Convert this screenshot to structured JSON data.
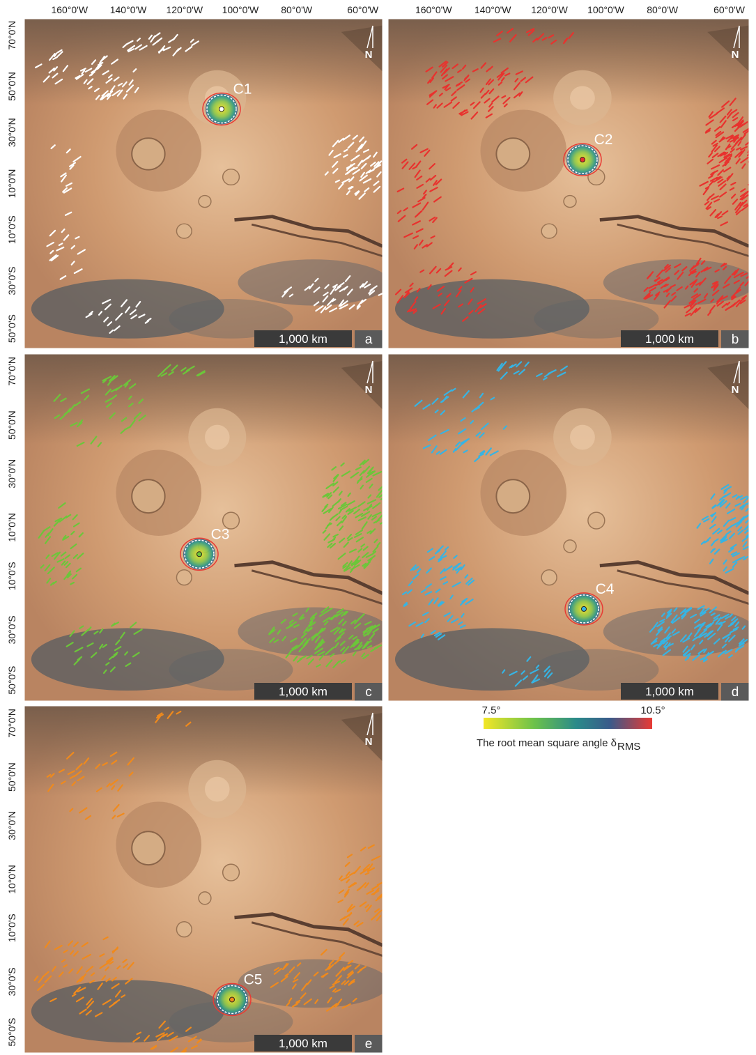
{
  "longitude_labels": [
    "160°0'W",
    "140°0'W",
    "120°0'W",
    "100°0'W",
    "80°0'W",
    "60°0'W"
  ],
  "latitude_labels": [
    "70°0'N",
    "50°0'N",
    "30°0'N",
    "10°0'N",
    "10°0'S",
    "30°0'S",
    "50°0'S"
  ],
  "scale_bar": "1,000 km",
  "north_label": "N",
  "panels": [
    {
      "letter": "a",
      "center_label": "C1",
      "lineament_color": "#ffffff"
    },
    {
      "letter": "b",
      "center_label": "C2",
      "lineament_color": "#e8322e"
    },
    {
      "letter": "c",
      "center_label": "C3",
      "lineament_color": "#6cc63a"
    },
    {
      "letter": "d",
      "center_label": "C4",
      "lineament_color": "#36b4e4"
    },
    {
      "letter": "e",
      "center_label": "C5",
      "lineament_color": "#f08a1c"
    }
  ],
  "colorbar": {
    "min_label": "7.5°",
    "max_label": "10.5°",
    "title": "The root mean square angle δ",
    "title_subscript": "RMS"
  }
}
